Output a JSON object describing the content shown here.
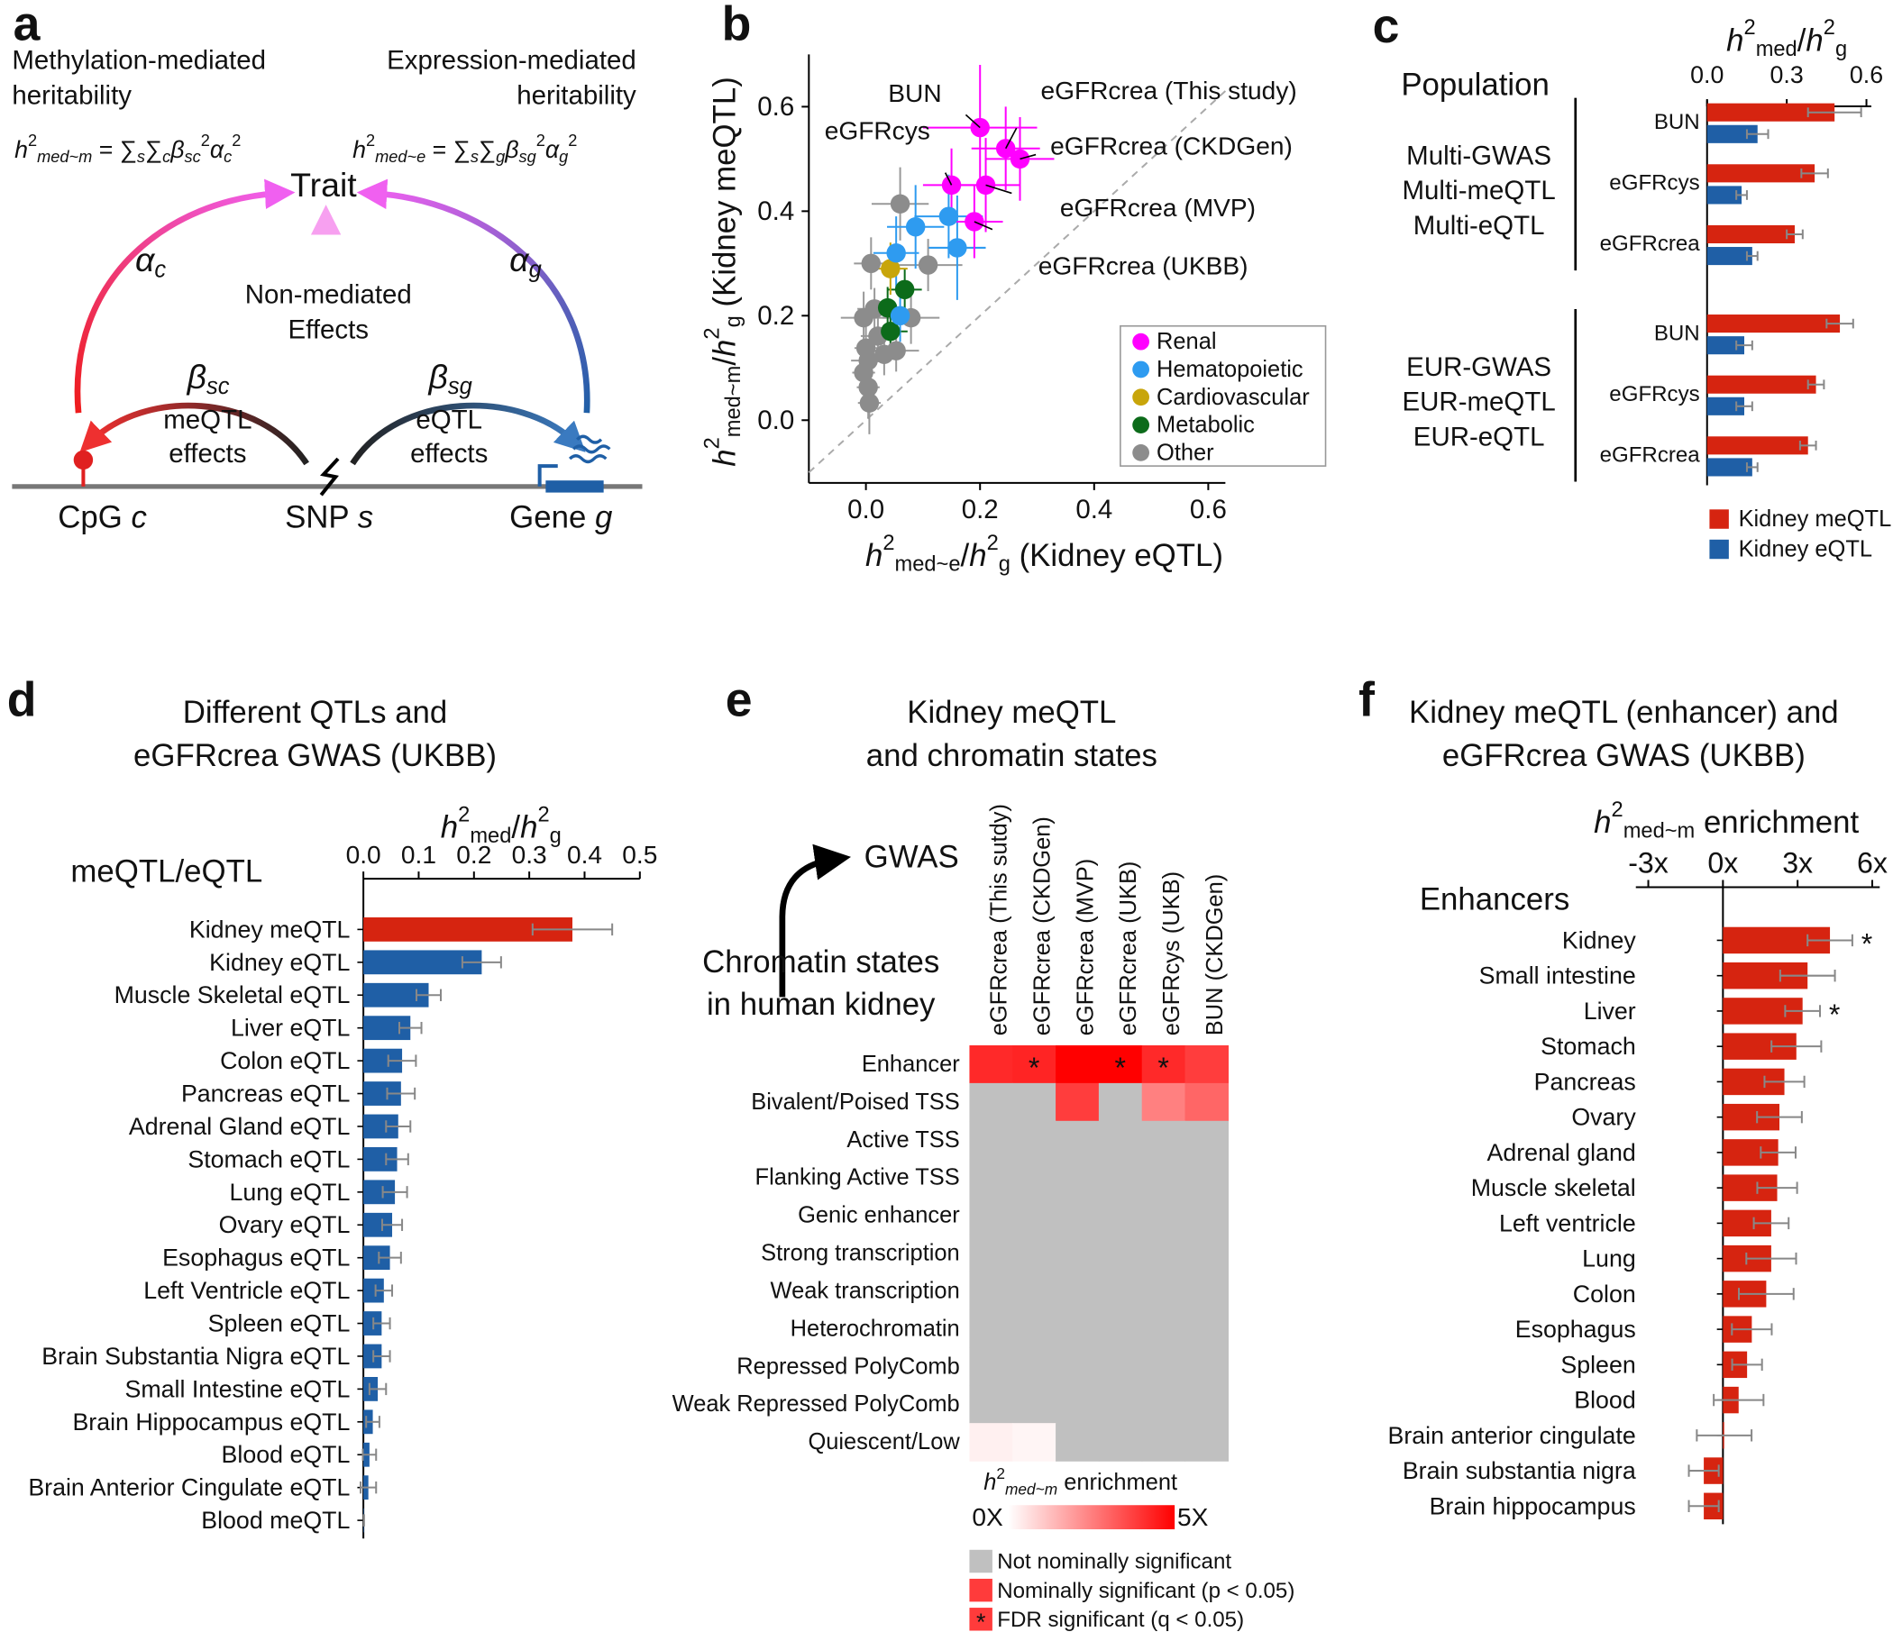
{
  "panel_labels": [
    "a",
    "b",
    "c",
    "d",
    "e",
    "f"
  ],
  "diagram": {
    "left_title": [
      "Methylation-mediated",
      "heritability"
    ],
    "right_title": [
      "Expression-mediated",
      "heritability"
    ],
    "left_formula": [
      "h",
      "2",
      "med~m",
      " = ",
      "∑",
      "s",
      "∑",
      "c",
      "β",
      "sc",
      "2",
      "α",
      "c",
      "2"
    ],
    "right_formula": [
      "h",
      "2",
      "med~e",
      " = ",
      "∑",
      "s",
      "∑",
      "g",
      "β",
      "sg",
      "2",
      "α",
      "g",
      "2"
    ],
    "trait": "Trait",
    "alpha_c": [
      "α",
      "c"
    ],
    "alpha_g": [
      "α",
      "g"
    ],
    "non_mediated": [
      "Non-mediated",
      "Effects"
    ],
    "beta_sc": [
      "β",
      "sc"
    ],
    "beta_sg": [
      "β",
      "sg"
    ],
    "meqtl_effects": [
      "meQTL",
      "effects"
    ],
    "eqtl_effects": [
      "eQTL",
      "effects"
    ],
    "cpg": [
      "CpG ",
      "c"
    ],
    "snp": [
      "SNP ",
      "s"
    ],
    "gene": [
      "Gene ",
      "g"
    ]
  },
  "chart_data": [
    {
      "type": "scatter",
      "xlabel": [
        "h",
        "2",
        "med~e",
        "/",
        "h",
        "2",
        "g",
        " (Kidney eQTL)"
      ],
      "ylabel": [
        "h",
        "2",
        "med~m",
        "/",
        "h",
        "2",
        "g",
        " (Kidney meQTL)"
      ],
      "xlim": [
        -0.1,
        0.63
      ],
      "ylim": [
        -0.12,
        0.7
      ],
      "xticks": [
        {
          "value": 0,
          "label": "0.0"
        },
        0.2,
        0.4,
        0.6
      ],
      "yticks": [
        {
          "value": 0,
          "label": "0.0"
        },
        0.2,
        0.4,
        0.6
      ],
      "legend": "lower right",
      "series": [
        {
          "name": "Renal",
          "color": "#ff00ff",
          "labels": [
            "BUN",
            "eGFRcrea (This study)",
            "eGFRcrea (CKDGen)",
            "eGFRcrea (MVP)",
            "eGFRcrea (UKBB)",
            "eGFRcys"
          ],
          "x": [
            0.2,
            0.245,
            0.27,
            0.21,
            0.19,
            0.15
          ],
          "y": [
            0.56,
            0.52,
            0.5,
            0.45,
            0.38,
            0.45
          ],
          "x_err": [
            0.1,
            0.06,
            0.06,
            0.06,
            0.05,
            0.05
          ],
          "y_err": [
            0.12,
            0.08,
            0.08,
            0.09,
            0.07,
            0.07
          ]
        },
        {
          "name": "Hematopoietic",
          "color": "#2e9bf0",
          "x": [
            0.145,
            0.087,
            0.16,
            0.053,
            0.06
          ],
          "y": [
            0.39,
            0.37,
            0.33,
            0.32,
            0.2
          ],
          "x_err": [
            0.06,
            0.05,
            0.05,
            0.04,
            0.03
          ],
          "y_err": [
            0.08,
            0.08,
            0.1,
            0.07,
            0.05
          ]
        },
        {
          "name": "Cardiovascular",
          "color": "#c8a50a",
          "x": [
            0.043
          ],
          "y": [
            0.29
          ],
          "x_err": [
            0.03
          ],
          "y_err": [
            0.05
          ]
        },
        {
          "name": "Metabolic",
          "color": "#0c6b1a",
          "x": [
            0.068,
            0.038,
            0.043
          ],
          "y": [
            0.25,
            0.215,
            0.17
          ],
          "x_err": [
            0.03,
            0.02,
            0.03
          ],
          "y_err": [
            0.04,
            0.04,
            0.04
          ]
        },
        {
          "name": "Other",
          "color": "#8c8c8c",
          "x": [
            0.009,
            0.06,
            0.109,
            0.079,
            0.053,
            -0.004,
            0.015,
            0.004,
            -0.004,
            0.004,
            0.006,
            0.021,
            0,
            0.032
          ],
          "y": [
            0.3,
            0.414,
            0.297,
            0.196,
            0.133,
            0.196,
            0.213,
            0.114,
            0.091,
            0.063,
            0.033,
            0.161,
            0.138,
            0.126
          ],
          "x_err": [
            0.03,
            0.05,
            0.06,
            0.05,
            0.04,
            0.04,
            0.03,
            0.03,
            0.02,
            0.02,
            0.02,
            0.03,
            0.02,
            0.03
          ],
          "y_err": [
            0.05,
            0.07,
            0.05,
            0.05,
            0.04,
            0.05,
            0.04,
            0.04,
            0.04,
            0.06,
            0.06,
            0.05,
            0.05,
            0.04
          ]
        }
      ]
    },
    {
      "type": "bar",
      "orientation": "horizontal",
      "title": "Population",
      "xlabel": [
        "h",
        "2",
        "med",
        "/",
        "h",
        "2",
        "g"
      ],
      "xlim": [
        0,
        0.6
      ],
      "xticks": [
        {
          "value": 0,
          "label": "0.0"
        },
        0.3,
        0.6
      ],
      "groups": [
        {
          "label": [
            "Multi-GWAS",
            "Multi-meQTL",
            "Multi-eQTL"
          ],
          "categories": [
            "BUN",
            "eGFRcys",
            "eGFRcrea"
          ]
        },
        {
          "label": [
            "EUR-GWAS",
            "EUR-meQTL",
            "EUR-eQTL"
          ],
          "categories": [
            "BUN",
            "eGFRcys",
            "eGFRcrea"
          ]
        }
      ],
      "series": [
        {
          "name": "Kidney meQTL",
          "color": "#d62410",
          "values": [
            [
              0.48,
              0.405,
              0.33
            ],
            [
              0.5,
              0.41,
              0.38
            ]
          ],
          "errors": [
            [
              0.1,
              0.05,
              0.03
            ],
            [
              0.05,
              0.03,
              0.03
            ]
          ]
        },
        {
          "name": "Kidney eQTL",
          "color": "#1f5fa6",
          "values": [
            [
              0.19,
              0.13,
              0.17
            ],
            [
              0.14,
              0.14,
              0.17
            ]
          ],
          "errors": [
            [
              0.04,
              0.02,
              0.02
            ],
            [
              0.03,
              0.03,
              0.02
            ]
          ]
        }
      ],
      "legend": "bottom"
    },
    {
      "type": "bar",
      "orientation": "horizontal",
      "title": [
        "Different QTLs and",
        "eGFRcrea GWAS (UKBB)"
      ],
      "header": "meQTL/eQTL",
      "xlabel": [
        "h",
        "2",
        "med",
        "/",
        "h",
        "2",
        "g"
      ],
      "xlim": [
        0,
        0.5
      ],
      "xticks": [
        {
          "value": 0,
          "label": "0.0"
        },
        0.1,
        0.2,
        0.3,
        0.4,
        0.5
      ],
      "categories": [
        "Kidney meQTL",
        "Kidney eQTL",
        "Muscle Skeletal eQTL",
        "Liver eQTL",
        "Colon eQTL",
        "Pancreas eQTL",
        "Adrenal Gland eQTL",
        "Stomach eQTL",
        "Lung eQTL",
        "Ovary eQTL",
        "Esophagus eQTL",
        "Left Ventricle eQTL",
        "Spleen eQTL",
        "Brain Substantia Nigra eQTL",
        "Small Intestine eQTL",
        "Brain Hippocampus eQTL",
        "Blood eQTL",
        "Brain Anterior Cingulate eQTL",
        "Blood meQTL"
      ],
      "values": [
        0.378,
        0.214,
        0.118,
        0.085,
        0.07,
        0.068,
        0.063,
        0.061,
        0.057,
        0.052,
        0.048,
        0.037,
        0.033,
        0.033,
        0.026,
        0.017,
        0.011,
        0.009,
        0.001
      ],
      "errors": [
        0.072,
        0.035,
        0.022,
        0.02,
        0.025,
        0.025,
        0.022,
        0.02,
        0.022,
        0.018,
        0.02,
        0.015,
        0.015,
        0.015,
        0.015,
        0.012,
        0.012,
        0.014,
        0
      ],
      "colors": [
        "#d62410",
        "#1f5fa6",
        "#1f5fa6",
        "#1f5fa6",
        "#1f5fa6",
        "#1f5fa6",
        "#1f5fa6",
        "#1f5fa6",
        "#1f5fa6",
        "#1f5fa6",
        "#1f5fa6",
        "#1f5fa6",
        "#1f5fa6",
        "#1f5fa6",
        "#1f5fa6",
        "#1f5fa6",
        "#1f5fa6",
        "#1f5fa6",
        "#1f5fa6"
      ]
    },
    {
      "type": "heatmap",
      "title": [
        "Kidney meQTL",
        "and chromatin states"
      ],
      "col_header": "GWAS",
      "row_header": [
        "Chromatin states",
        "in human kidney"
      ],
      "columns": [
        "eGFRcrea (This sutdy)",
        "eGFRcrea (CKDGen)",
        "eGFRcrea (MVP)",
        "eGFRcrea (UKB)",
        "eGFRcys (UKB)",
        "BUN (CKDGen)"
      ],
      "rows": [
        "Enhancer",
        "Bivalent/Poised TSS",
        "Active TSS",
        "Flanking Active TSS",
        "Genic enhancer",
        "Strong transcription",
        "Weak transcription",
        "Heterochromatin",
        "Repressed PolyComb",
        "Weak Repressed PolyComb",
        "Quiescent/Low"
      ],
      "values": [
        [
          4.2,
          4.3,
          5,
          5,
          4.2,
          3.8
        ],
        [
          null,
          null,
          3.8,
          null,
          2.5,
          3
        ],
        [
          null,
          null,
          null,
          null,
          null,
          null
        ],
        [
          null,
          null,
          null,
          null,
          null,
          null
        ],
        [
          null,
          null,
          null,
          null,
          null,
          null
        ],
        [
          null,
          null,
          null,
          null,
          null,
          null
        ],
        [
          null,
          null,
          null,
          null,
          null,
          null
        ],
        [
          null,
          null,
          null,
          null,
          null,
          null
        ],
        [
          null,
          null,
          null,
          null,
          null,
          null
        ],
        [
          null,
          null,
          null,
          null,
          null,
          null
        ],
        [
          0.3,
          0.2,
          null,
          null,
          null,
          null
        ]
      ],
      "annotations": [
        {
          "row": 0,
          "col": 1,
          "label": "*"
        },
        {
          "row": 0,
          "col": 3,
          "label": "*"
        },
        {
          "row": 0,
          "col": 4,
          "label": "*"
        }
      ],
      "nonsignificant_color": "#c0c0c0",
      "colorbar": {
        "label": [
          "h",
          "2",
          "med~m",
          " enrichment"
        ],
        "clim": [
          0,
          5
        ],
        "colors": [
          "#ffffff",
          "#ff0000"
        ],
        "ticks": [
          {
            "value": 0,
            "label": "0X"
          },
          {
            "value": 5,
            "label": "5X"
          }
        ]
      },
      "legend": [
        {
          "label": "Not nominally significant",
          "color": "#c0c0c0"
        },
        {
          "label": "Nominally significant (p < 0.05)",
          "color": "#ff3b3b"
        },
        {
          "label": "FDR significant (q < 0.05)",
          "color": "#ff3b3b",
          "mark": "*"
        }
      ]
    },
    {
      "type": "bar",
      "orientation": "horizontal",
      "title": [
        "Kidney meQTL (enhancer) and",
        "eGFRcrea GWAS (UKBB)"
      ],
      "header": "Enhancers",
      "xlabel": [
        "h",
        "2",
        "med~m",
        " enrichment"
      ],
      "xlim": [
        -3.5,
        6.3
      ],
      "xticks": [
        {
          "value": -3,
          "label": "-3x"
        },
        {
          "value": 0,
          "label": "0x"
        },
        {
          "value": 3,
          "label": "3x"
        },
        {
          "value": 6,
          "label": "6x"
        }
      ],
      "zero_line": true,
      "categories": [
        "Kidney",
        "Small intestine",
        "Liver",
        "Stomach",
        "Pancreas",
        "Ovary",
        "Adrenal gland",
        "Muscle skeletal",
        "Left ventricle",
        "Lung",
        "Colon",
        "Esophagus",
        "Spleen",
        "Blood",
        "Brain anterior cingulate",
        "Brain substantia nigra",
        "Brain hippocampus"
      ],
      "values": [
        4.3,
        3.4,
        3.2,
        2.95,
        2.47,
        2.27,
        2.22,
        2.18,
        1.94,
        1.94,
        1.74,
        1.16,
        0.97,
        0.63,
        0.05,
        -0.77,
        -0.77
      ],
      "errors": [
        0.9,
        1.1,
        0.7,
        1.0,
        0.8,
        0.9,
        0.7,
        0.8,
        0.7,
        1.0,
        1.1,
        0.8,
        0.6,
        1.0,
        1.1,
        0.6,
        0.6
      ],
      "color": "#d62410",
      "annotations": [
        {
          "index": 0,
          "label": "*"
        },
        {
          "index": 2,
          "label": "*"
        }
      ]
    }
  ]
}
